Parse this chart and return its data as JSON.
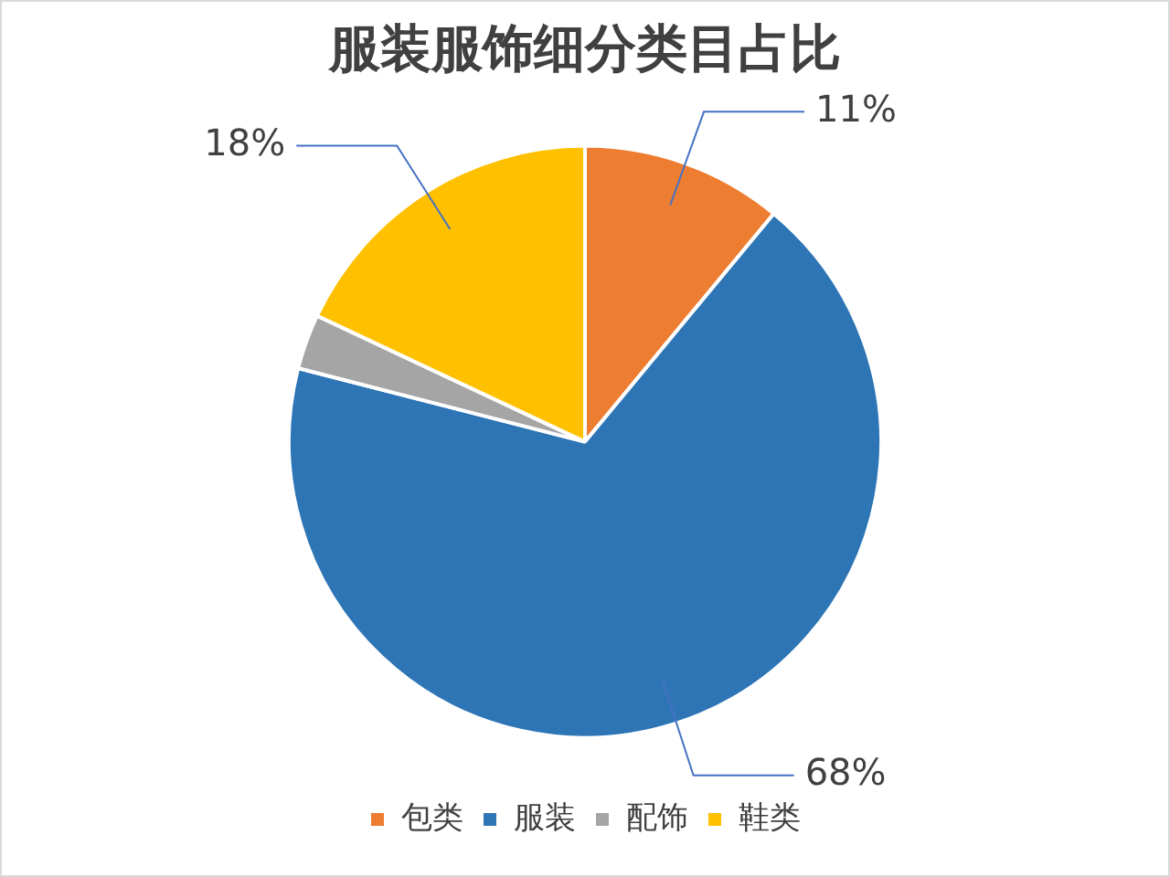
{
  "chart_data": {
    "type": "pie",
    "title": "服装服饰细分类目占比",
    "categories": [
      "包类",
      "服装",
      "配饰",
      "鞋类"
    ],
    "values": [
      11,
      68,
      3,
      18
    ],
    "value_labels": [
      "11%",
      "68%",
      null,
      "18%"
    ],
    "colors": [
      "#ed7d31",
      "#2e75b6",
      "#a5a5a5",
      "#ffc000"
    ],
    "legend": "bottom"
  }
}
